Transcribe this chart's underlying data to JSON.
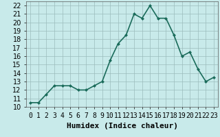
{
  "x": [
    0,
    1,
    2,
    3,
    4,
    5,
    6,
    7,
    8,
    9,
    10,
    11,
    12,
    13,
    14,
    15,
    16,
    17,
    18,
    19,
    20,
    21,
    22,
    23
  ],
  "y": [
    10.5,
    10.5,
    11.5,
    12.5,
    12.5,
    12.5,
    12.0,
    12.0,
    12.5,
    13.0,
    15.5,
    17.5,
    18.5,
    21.0,
    20.5,
    22.0,
    20.5,
    20.5,
    18.5,
    16.0,
    16.5,
    14.5,
    13.0,
    13.5
  ],
  "line_color": "#1a6b5a",
  "marker": "D",
  "marker_size": 2,
  "background_color": "#c8eaea",
  "grid_color": "#9bbcbc",
  "xlabel": "Humidex (Indice chaleur)",
  "xlim": [
    -0.5,
    23.5
  ],
  "ylim": [
    10,
    22.5
  ],
  "yticks": [
    10,
    11,
    12,
    13,
    14,
    15,
    16,
    17,
    18,
    19,
    20,
    21,
    22
  ],
  "xlabel_fontsize": 8,
  "tick_fontsize": 7,
  "line_width": 1.2
}
